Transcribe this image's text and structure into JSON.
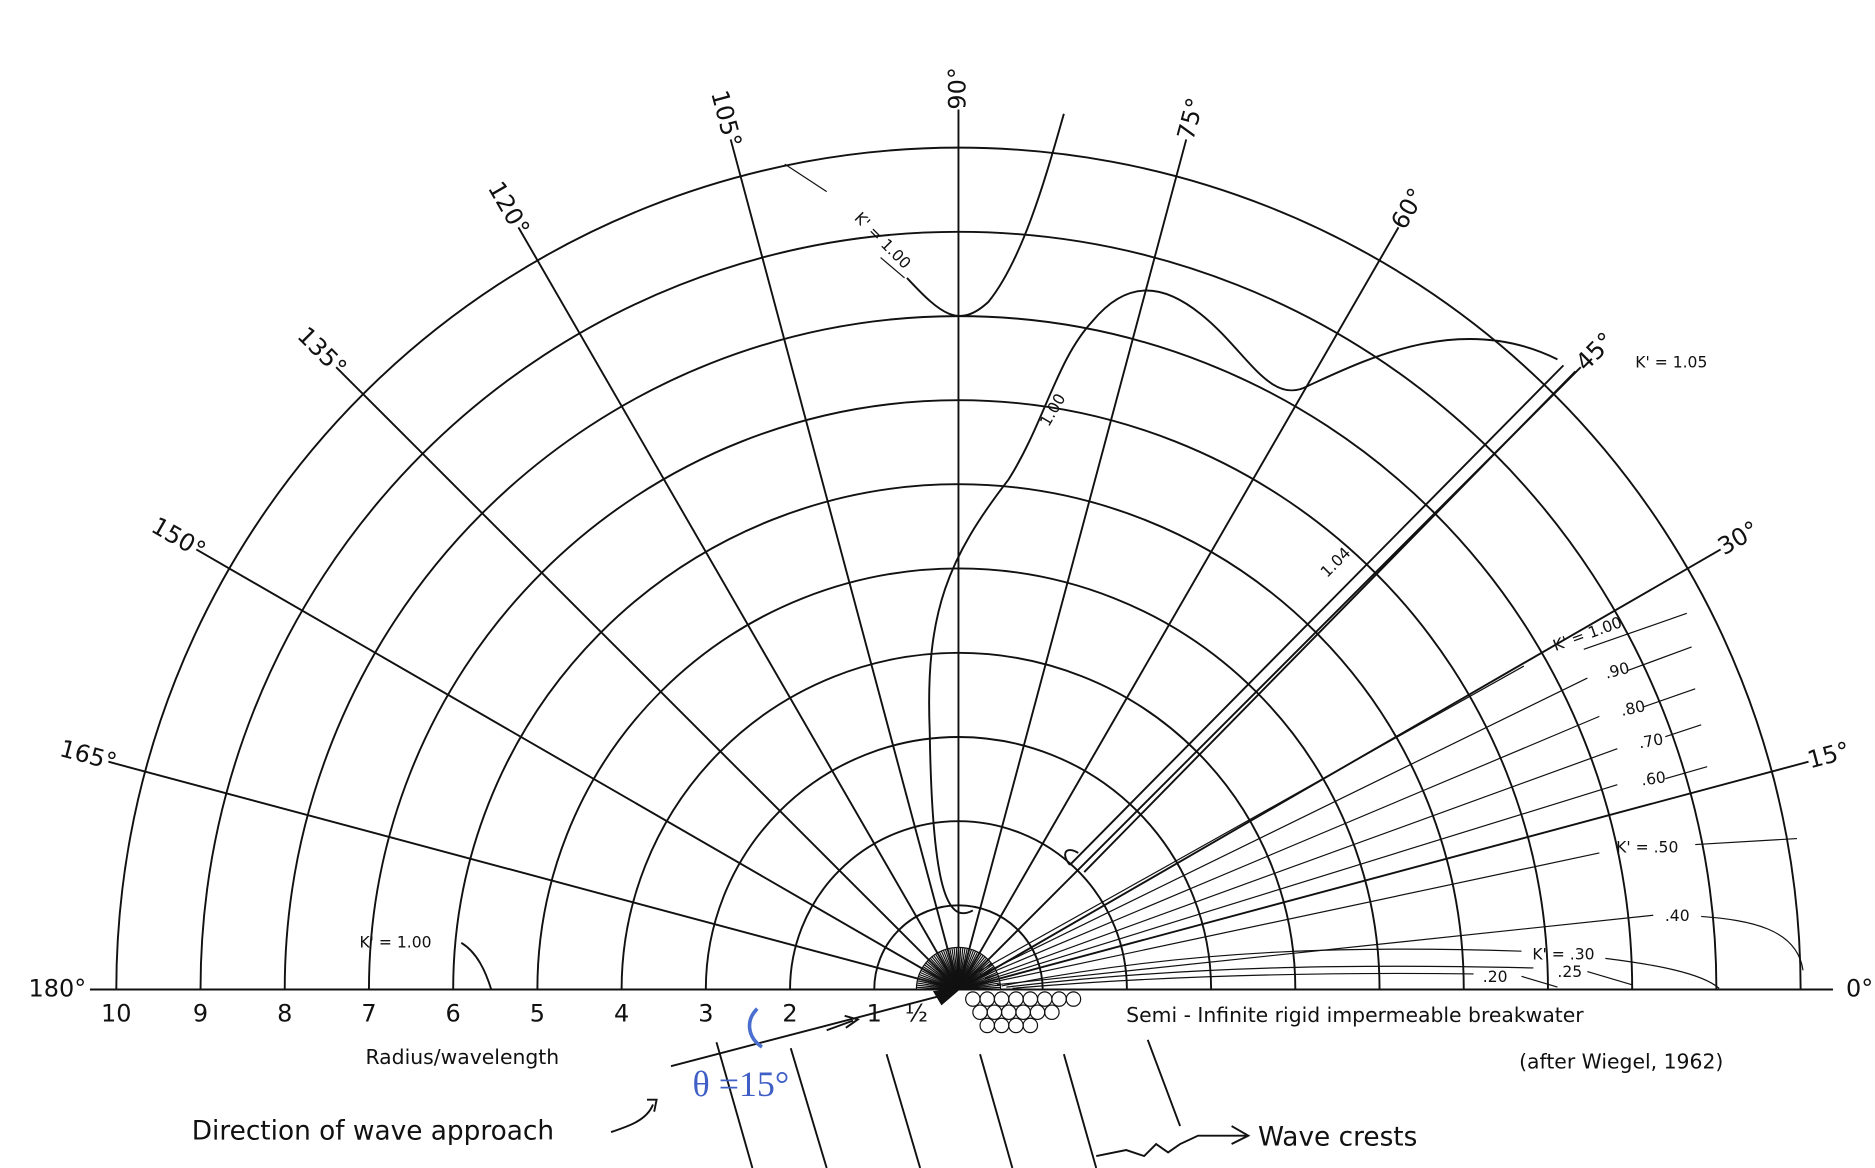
{
  "angle_labels": [
    "0°",
    "15°",
    "30°",
    "45°",
    "60°",
    "75°",
    "90°",
    "105°",
    "120°",
    "135°",
    "150°",
    "165°",
    "180°"
  ],
  "radius_labels": [
    "10",
    "9",
    "8",
    "7",
    "6",
    "5",
    "4",
    "3",
    "2",
    "1",
    "½"
  ],
  "axis_label": "Radius/wavelength",
  "contour_labels": [
    "K' = 1.00",
    "1.00",
    "1.04",
    "K' = 1.05",
    "K' = 1.00",
    "K' = 1.00",
    ".90",
    ".80",
    ".70",
    ".60",
    "K' = .50",
    ".40",
    "K' = .30",
    ".25",
    ".20"
  ],
  "annotations": {
    "breakwater": "Semi - Infinite rigid impermeable breakwater",
    "source": "(after Wiegel, 1962)",
    "approach": "Direction of wave approach",
    "crests": "Wave crests",
    "theta": "θ =15°"
  }
}
